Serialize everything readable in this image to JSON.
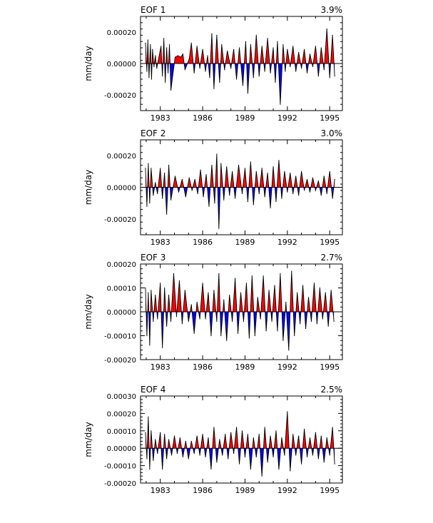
{
  "chart_data": [
    {
      "type": "area",
      "title": "EOF 1",
      "variance_label": "3.9%",
      "ylabel": "mm/day",
      "xlim": [
        1981.6,
        1995.9
      ],
      "ylim": [
        -0.0003,
        0.0003
      ],
      "yticks": [
        -0.0002,
        0.0,
        0.0002
      ],
      "ytick_labels": [
        "-0.00020",
        "0.00000",
        "0.00020"
      ],
      "xticks": [
        1983,
        1986,
        1989,
        1992,
        1995
      ],
      "xtick_labels": [
        "1983",
        "1986",
        "1989",
        "1992",
        "1995"
      ],
      "grid": false,
      "positive_fill": "#ff0000",
      "negative_fill": "#0000ff",
      "x": [
        1981.95,
        1982.05,
        1982.12,
        1982.2,
        1982.3,
        1982.38,
        1982.45,
        1982.55,
        1982.65,
        1982.75,
        1983.05,
        1983.15,
        1983.25,
        1983.35,
        1983.45,
        1983.55,
        1983.65,
        1983.75,
        1984.05,
        1984.25,
        1984.45,
        1984.6,
        1984.75,
        1985.05,
        1985.2,
        1985.4,
        1985.6,
        1985.8,
        1986.0,
        1986.2,
        1986.35,
        1986.5,
        1986.65,
        1986.8,
        1987.0,
        1987.2,
        1987.35,
        1987.55,
        1987.75,
        1988.0,
        1988.2,
        1988.4,
        1988.6,
        1988.85,
        1989.05,
        1989.2,
        1989.4,
        1989.6,
        1989.8,
        1990.0,
        1990.2,
        1990.4,
        1990.6,
        1990.8,
        1991.0,
        1991.15,
        1991.3,
        1991.5,
        1991.7,
        1991.85,
        1992.0,
        1992.2,
        1992.4,
        1992.6,
        1992.8,
        1993.0,
        1993.2,
        1993.4,
        1993.6,
        1993.8,
        1994.0,
        1994.2,
        1994.4,
        1994.6,
        1994.8,
        1995.0,
        1995.2,
        1995.35
      ],
      "values": [
        0.00013,
        -5e-05,
        0.00015,
        -9e-05,
        0.00012,
        -0.0001,
        9e-05,
        -2e-05,
        5e-05,
        -3e-05,
        0.00011,
        -8e-05,
        0.00016,
        -0.00012,
        0.0001,
        -6e-05,
        0.00012,
        -0.00017,
        4e-05,
        5e-05,
        4e-05,
        6e-05,
        -4e-05,
        3e-05,
        0.00013,
        -6e-05,
        0.00011,
        -3e-05,
        9e-05,
        -5e-05,
        5e-05,
        -9e-05,
        0.00019,
        -0.00016,
        0.00018,
        -0.00012,
        0.00012,
        -4e-05,
        8e-05,
        -3e-05,
        9e-05,
        -0.0001,
        0.0001,
        -0.00014,
        0.00014,
        -0.00019,
        0.00012,
        -9e-05,
        0.00018,
        -8e-05,
        0.00011,
        -5e-05,
        0.00016,
        -6e-05,
        0.0001,
        -0.00012,
        0.00014,
        -0.00026,
        0.00012,
        -5e-05,
        9e-05,
        -2e-05,
        0.00011,
        -5e-05,
        7e-05,
        -3e-05,
        9e-05,
        -6e-05,
        6e-05,
        -2e-05,
        0.00011,
        -8e-05,
        0.0001,
        -4e-05,
        0.00022,
        -9e-05,
        0.00018,
        -8e-05
      ]
    },
    {
      "type": "area",
      "title": "EOF 2",
      "variance_label": "3.0%",
      "ylabel": "mm/day",
      "xlim": [
        1981.6,
        1995.9
      ],
      "ylim": [
        -0.0003,
        0.0003
      ],
      "yticks": [
        -0.0002,
        0.0,
        0.0002
      ],
      "ytick_labels": [
        "-0.00020",
        "0.00000",
        "0.00020"
      ],
      "xticks": [
        1983,
        1986,
        1989,
        1992,
        1995
      ],
      "xtick_labels": [
        "1983",
        "1986",
        "1989",
        "1992",
        "1995"
      ],
      "grid": false,
      "positive_fill": "#ff0000",
      "negative_fill": "#0000ff",
      "x": [
        1981.95,
        1982.05,
        1982.15,
        1982.25,
        1982.35,
        1982.5,
        1982.65,
        1982.8,
        1983.0,
        1983.15,
        1983.3,
        1983.45,
        1983.6,
        1983.75,
        1984.05,
        1984.3,
        1984.55,
        1984.8,
        1985.05,
        1985.25,
        1985.45,
        1985.65,
        1985.85,
        1986.05,
        1986.25,
        1986.45,
        1986.65,
        1986.85,
        1987.0,
        1987.15,
        1987.3,
        1987.5,
        1987.7,
        1987.9,
        1988.1,
        1988.3,
        1988.55,
        1988.8,
        1989.0,
        1989.2,
        1989.4,
        1989.6,
        1989.8,
        1990.0,
        1990.2,
        1990.4,
        1990.6,
        1990.8,
        1991.0,
        1991.2,
        1991.4,
        1991.6,
        1991.8,
        1992.0,
        1992.2,
        1992.4,
        1992.6,
        1992.8,
        1993.0,
        1993.2,
        1993.4,
        1993.6,
        1993.8,
        1994.0,
        1994.2,
        1994.4,
        1994.6,
        1994.8,
        1995.0,
        1995.2,
        1995.35
      ],
      "values": [
        0.00012,
        -0.00012,
        0.00015,
        -0.0001,
        0.00012,
        -5e-05,
        3e-05,
        -4e-05,
        0.00012,
        -7e-05,
        9e-05,
        -0.00017,
        0.00014,
        -8e-05,
        7e-05,
        -3e-05,
        5e-05,
        -6e-05,
        6e-05,
        -2e-05,
        5e-05,
        -4e-05,
        0.00011,
        -6e-05,
        8e-05,
        -0.00012,
        0.00014,
        -0.0001,
        0.00021,
        -0.00026,
        0.00015,
        -8e-05,
        0.00013,
        -5e-05,
        0.0001,
        -7e-05,
        0.00014,
        -4e-05,
        0.00012,
        -9e-05,
        0.00016,
        -0.00011,
        0.0001,
        -4e-05,
        0.00012,
        -6e-05,
        9e-05,
        -0.00013,
        0.00013,
        -9e-05,
        0.00017,
        -7e-05,
        0.0001,
        -3e-05,
        9e-05,
        -4e-05,
        7e-05,
        -5e-05,
        0.0001,
        -2e-05,
        5e-05,
        -3e-05,
        6e-05,
        -2e-05,
        4e-05,
        -5e-05,
        7e-05,
        -4e-05,
        0.0001,
        -7e-05,
        5e-05
      ]
    },
    {
      "type": "area",
      "title": "EOF 3",
      "variance_label": "2.7%",
      "ylabel": "mm/day",
      "xlim": [
        1981.6,
        1995.9
      ],
      "ylim": [
        -0.0002,
        0.0002
      ],
      "yticks": [
        -0.0002,
        -0.0001,
        0.0,
        0.0001,
        0.0002
      ],
      "ytick_labels": [
        "-0.00020",
        "-0.00010",
        "0.00000",
        "0.00010",
        "0.00020"
      ],
      "xticks": [
        1983,
        1986,
        1989,
        1992,
        1995
      ],
      "xtick_labels": [
        "1983",
        "1986",
        "1989",
        "1992",
        "1995"
      ],
      "grid": false,
      "positive_fill": "#ff0000",
      "negative_fill": "#0000ff",
      "x": [
        1981.95,
        1982.05,
        1982.15,
        1982.25,
        1982.35,
        1982.5,
        1982.65,
        1982.8,
        1983.0,
        1983.15,
        1983.3,
        1983.45,
        1983.6,
        1983.75,
        1983.95,
        1984.15,
        1984.35,
        1984.55,
        1984.75,
        1985.0,
        1985.2,
        1985.4,
        1985.6,
        1985.8,
        1986.0,
        1986.2,
        1986.4,
        1986.6,
        1986.8,
        1987.0,
        1987.15,
        1987.3,
        1987.5,
        1987.7,
        1987.9,
        1988.1,
        1988.3,
        1988.5,
        1988.7,
        1988.9,
        1989.1,
        1989.3,
        1989.5,
        1989.7,
        1989.9,
        1990.1,
        1990.3,
        1990.5,
        1990.7,
        1990.9,
        1991.1,
        1991.3,
        1991.5,
        1991.7,
        1991.9,
        1992.1,
        1992.3,
        1992.5,
        1992.7,
        1992.9,
        1993.1,
        1993.3,
        1993.5,
        1993.7,
        1993.9,
        1994.1,
        1994.3,
        1994.5,
        1994.7,
        1994.9,
        1995.1,
        1995.3
      ],
      "values": [
        0.0001,
        -0.0001,
        8e-05,
        -0.00014,
        9e-05,
        -4e-05,
        7e-05,
        -3e-05,
        0.00012,
        -0.00015,
        0.0001,
        -6e-05,
        7e-05,
        -4e-05,
        0.00016,
        -2e-05,
        0.00013,
        -5e-05,
        9e-05,
        -4e-05,
        3e-05,
        -9e-05,
        4e-05,
        -3e-05,
        0.00012,
        -3e-05,
        8e-05,
        -0.0001,
        9e-05,
        -4e-05,
        0.00016,
        -0.0001,
        5e-05,
        -0.00012,
        7e-05,
        -4e-05,
        0.00014,
        -9e-05,
        8e-05,
        -4e-05,
        0.00012,
        -0.00011,
        0.00015,
        -0.0001,
        6e-05,
        -3e-05,
        0.00015,
        -8e-05,
        9e-05,
        -4e-05,
        0.00011,
        -8e-05,
        0.00016,
        -0.00012,
        4e-05,
        -0.00016,
        0.00017,
        -0.0001,
        8e-05,
        -5e-05,
        0.00011,
        -7e-05,
        6e-05,
        -4e-05,
        0.00012,
        -5e-05,
        0.0001,
        -3e-05,
        8e-05,
        -6e-05,
        9e-05,
        -4e-05
      ]
    },
    {
      "type": "area",
      "title": "EOF 4",
      "variance_label": "2.5%",
      "ylabel": "mm/day",
      "xlim": [
        1981.6,
        1995.9
      ],
      "ylim": [
        -0.0002,
        0.0003
      ],
      "yticks": [
        -0.0002,
        -0.0001,
        0.0,
        0.0001,
        0.0002,
        0.0003
      ],
      "ytick_labels": [
        "-0.00020",
        "-0.00010",
        "0.00000",
        "0.00010",
        "0.00020",
        "0.00030"
      ],
      "xticks": [
        1983,
        1986,
        1989,
        1992,
        1995
      ],
      "xtick_labels": [
        "1983",
        "1986",
        "1989",
        "1992",
        "1995"
      ],
      "grid": false,
      "positive_fill": "#ff0000",
      "negative_fill": "#0000ff",
      "x": [
        1981.95,
        1982.05,
        1982.15,
        1982.25,
        1982.35,
        1982.5,
        1982.65,
        1982.8,
        1983.0,
        1983.15,
        1983.3,
        1983.45,
        1983.6,
        1983.8,
        1984.0,
        1984.2,
        1984.4,
        1984.6,
        1984.8,
        1985.0,
        1985.2,
        1985.4,
        1985.6,
        1985.8,
        1986.0,
        1986.2,
        1986.4,
        1986.6,
        1986.8,
        1987.0,
        1987.2,
        1987.4,
        1987.6,
        1987.8,
        1988.0,
        1988.2,
        1988.4,
        1988.6,
        1988.8,
        1989.0,
        1989.2,
        1989.4,
        1989.6,
        1989.8,
        1990.0,
        1990.2,
        1990.4,
        1990.6,
        1990.8,
        1991.0,
        1991.2,
        1991.4,
        1991.6,
        1991.8,
        1992.0,
        1992.2,
        1992.4,
        1992.6,
        1992.8,
        1993.0,
        1993.2,
        1993.4,
        1993.6,
        1993.8,
        1994.0,
        1994.2,
        1994.4,
        1994.6,
        1994.8,
        1995.0,
        1995.2,
        1995.35
      ],
      "values": [
        9e-05,
        -6e-05,
        0.00018,
        -0.00012,
        0.0001,
        -7e-05,
        5e-05,
        -3e-05,
        9e-05,
        -0.00012,
        8e-05,
        -6e-05,
        5e-05,
        -4e-05,
        7e-05,
        -3e-05,
        6e-05,
        -5e-05,
        4e-05,
        -6e-05,
        4e-05,
        -3e-05,
        7e-05,
        -4e-05,
        8e-05,
        -5e-05,
        6e-05,
        -0.00012,
        0.00012,
        -8e-05,
        5e-05,
        -4e-05,
        8e-05,
        -6e-05,
        9e-05,
        -3e-05,
        0.00012,
        -9e-05,
        0.0001,
        -5e-05,
        8e-05,
        -0.00012,
        6e-05,
        -5e-05,
        8e-05,
        -0.00016,
        0.00012,
        -8e-05,
        7e-05,
        -5e-05,
        0.0001,
        -0.00012,
        6e-05,
        -4e-05,
        0.00021,
        -0.00013,
        8e-05,
        -4e-05,
        7e-05,
        -9e-05,
        0.00011,
        -5e-05,
        6e-05,
        -4e-05,
        9e-05,
        -6e-05,
        7e-05,
        -8e-05,
        6e-05,
        -4e-05,
        0.00012,
        -9e-05
      ]
    }
  ]
}
